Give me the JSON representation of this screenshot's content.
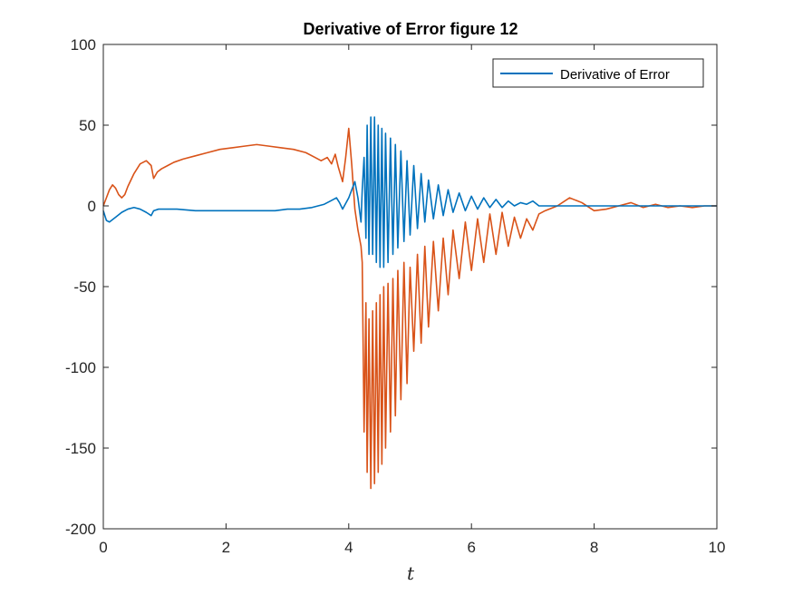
{
  "chart_data": {
    "type": "line",
    "title": "Derivative of Error  figure 12",
    "xlabel": "t",
    "ylabel": "",
    "xlim": [
      0,
      10
    ],
    "ylim": [
      -200,
      100
    ],
    "xticks": [
      0,
      2,
      4,
      6,
      8,
      10
    ],
    "yticks": [
      100,
      50,
      0,
      -50,
      -100,
      -150,
      -200
    ],
    "xtick_labels": [
      "0",
      "2",
      "4",
      "6",
      "8",
      "10"
    ],
    "ytick_labels": [
      "100",
      "50",
      "0",
      "-50",
      "-100",
      "-150",
      "-200"
    ],
    "grid": false,
    "legend": {
      "placement": "top-right",
      "entries": [
        "Derivative of Error"
      ]
    },
    "series": [
      {
        "name": "Derivative of Error",
        "color": "#0072BD",
        "x": [
          0,
          0.05,
          0.1,
          0.2,
          0.3,
          0.4,
          0.5,
          0.6,
          0.7,
          0.78,
          0.82,
          0.9,
          1.0,
          1.2,
          1.5,
          1.8,
          2.0,
          2.2,
          2.5,
          2.8,
          3.0,
          3.2,
          3.4,
          3.6,
          3.7,
          3.8,
          3.85,
          3.9,
          4.0,
          4.05,
          4.1,
          4.15,
          4.2,
          4.22,
          4.25,
          4.28,
          4.3,
          4.33,
          4.36,
          4.39,
          4.42,
          4.45,
          4.48,
          4.51,
          4.54,
          4.57,
          4.6,
          4.64,
          4.68,
          4.72,
          4.76,
          4.8,
          4.85,
          4.9,
          4.95,
          5.0,
          5.06,
          5.12,
          5.18,
          5.24,
          5.3,
          5.38,
          5.46,
          5.54,
          5.62,
          5.7,
          5.8,
          5.9,
          6.0,
          6.1,
          6.2,
          6.3,
          6.4,
          6.5,
          6.6,
          6.7,
          6.8,
          6.9,
          7.0,
          7.1,
          7.2,
          7.5,
          8.0,
          8.5,
          9.0,
          9.5,
          10.0
        ],
        "values": [
          -3,
          -9,
          -10,
          -7,
          -4,
          -2,
          -1,
          -2,
          -4,
          -6,
          -3,
          -2,
          -2,
          -2,
          -3,
          -3,
          -3,
          -3,
          -3,
          -3,
          -2,
          -2,
          -1,
          1,
          3,
          5,
          2,
          -2,
          5,
          10,
          15,
          5,
          -10,
          10,
          30,
          -20,
          50,
          -30,
          55,
          -30,
          55,
          -35,
          50,
          -38,
          48,
          -38,
          45,
          -35,
          42,
          -30,
          38,
          -26,
          34,
          -22,
          28,
          -18,
          25,
          -14,
          20,
          -10,
          16,
          -8,
          13,
          -6,
          10,
          -4,
          8,
          -3,
          6,
          -2,
          5,
          -1,
          4,
          -1,
          3,
          0,
          2,
          1,
          3,
          0,
          0,
          0,
          0,
          0,
          0,
          0,
          0
        ]
      },
      {
        "name": "",
        "color": "#D95319",
        "x": [
          0,
          0.05,
          0.1,
          0.15,
          0.2,
          0.25,
          0.3,
          0.35,
          0.4,
          0.5,
          0.6,
          0.7,
          0.78,
          0.82,
          0.88,
          0.95,
          1.05,
          1.15,
          1.3,
          1.5,
          1.7,
          1.9,
          2.1,
          2.3,
          2.5,
          2.7,
          2.9,
          3.1,
          3.3,
          3.45,
          3.55,
          3.65,
          3.72,
          3.78,
          3.83,
          3.9,
          3.95,
          4.0,
          4.05,
          4.1,
          4.15,
          4.2,
          4.22,
          4.25,
          4.28,
          4.3,
          4.33,
          4.36,
          4.39,
          4.42,
          4.45,
          4.48,
          4.51,
          4.54,
          4.57,
          4.6,
          4.64,
          4.68,
          4.72,
          4.76,
          4.8,
          4.85,
          4.9,
          4.95,
          5.0,
          5.06,
          5.12,
          5.18,
          5.24,
          5.3,
          5.38,
          5.46,
          5.54,
          5.62,
          5.7,
          5.8,
          5.9,
          6.0,
          6.1,
          6.2,
          6.3,
          6.4,
          6.5,
          6.6,
          6.7,
          6.8,
          6.9,
          7.0,
          7.1,
          7.2,
          7.4,
          7.6,
          7.8,
          8.0,
          8.2,
          8.4,
          8.6,
          8.8,
          9.0,
          9.2,
          9.4,
          9.6,
          9.8,
          10.0
        ],
        "values": [
          0,
          5,
          10,
          13,
          11,
          7,
          5,
          7,
          12,
          20,
          26,
          28,
          25,
          17,
          21,
          23,
          25,
          27,
          29,
          31,
          33,
          35,
          36,
          37,
          38,
          37,
          36,
          35,
          33,
          30,
          28,
          30,
          26,
          32,
          24,
          15,
          30,
          48,
          25,
          -2,
          -15,
          -25,
          -35,
          -140,
          -60,
          -165,
          -70,
          -175,
          -65,
          -172,
          -60,
          -165,
          -55,
          -160,
          -50,
          -150,
          -48,
          -140,
          -45,
          -130,
          -40,
          -120,
          -35,
          -110,
          -38,
          -90,
          -30,
          -85,
          -25,
          -75,
          -22,
          -65,
          -20,
          -55,
          -15,
          -45,
          -10,
          -40,
          -8,
          -35,
          -5,
          -30,
          -4,
          -25,
          -7,
          -20,
          -8,
          -15,
          -5,
          -3,
          0,
          5,
          2,
          -3,
          -2,
          0,
          2,
          -1,
          1,
          -1,
          0,
          -1,
          0,
          0
        ]
      }
    ]
  }
}
